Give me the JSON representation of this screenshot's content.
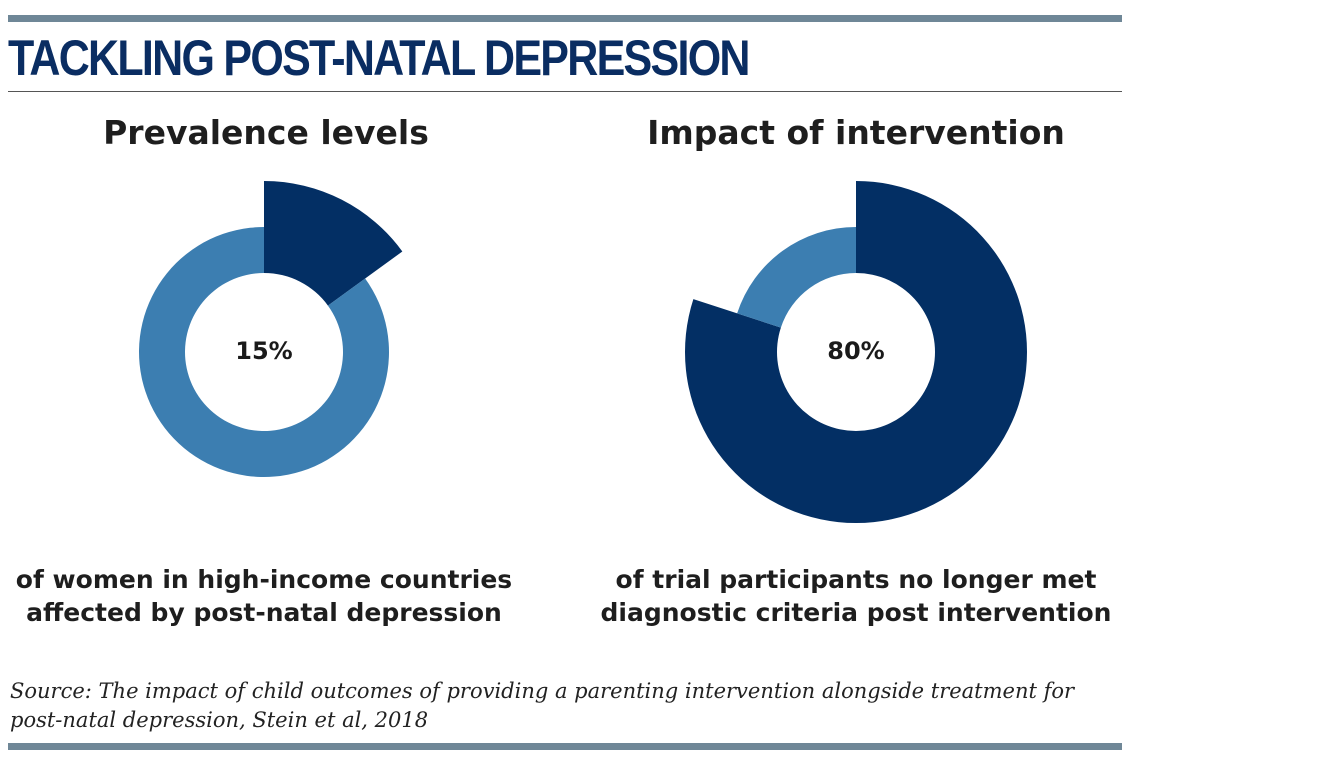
{
  "header": {
    "title": "TACKLING POST-NATAL DEPRESSION"
  },
  "colors": {
    "dark_navy": "#032f64",
    "light_blue": "#3c7eb1",
    "rule_gray": "#6f8797",
    "title_navy": "#0a2d62"
  },
  "chart_data": [
    {
      "type": "pie",
      "title": "Prevalence levels",
      "center_label": "15%",
      "caption": "of women in high-income countries affected by post-natal depression",
      "slices": [
        {
          "value": 15,
          "color": "#032f64",
          "highlighted": true
        },
        {
          "value": 85,
          "color": "#3c7eb1",
          "highlighted": false
        }
      ]
    },
    {
      "type": "pie",
      "title": "Impact of intervention",
      "center_label": "80%",
      "caption": "of trial participants no longer met diagnostic criteria post intervention",
      "slices": [
        {
          "value": 80,
          "color": "#032f64",
          "highlighted": true
        },
        {
          "value": 20,
          "color": "#3c7eb1",
          "highlighted": false
        }
      ]
    }
  ],
  "footer": {
    "source": "Source: The impact of child outcomes of providing a parenting intervention alongside treatment for post-natal depression, Stein et al, 2018"
  }
}
